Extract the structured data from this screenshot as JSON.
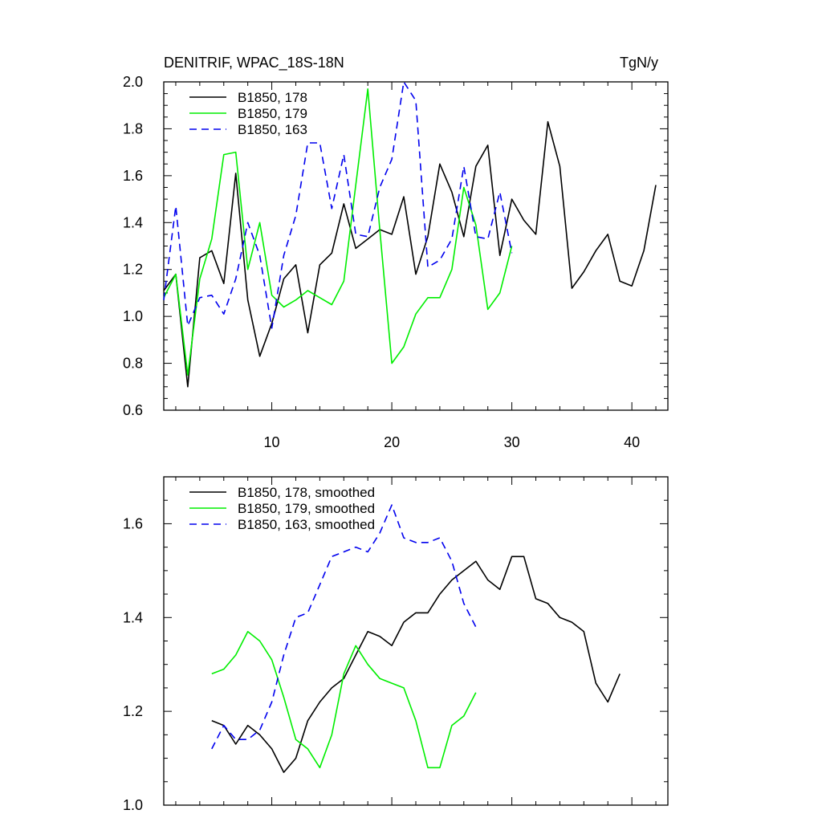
{
  "chart_data": [
    {
      "type": "line",
      "title": "DENITRIF, WPAC_18S-18N",
      "units": "TgN/y",
      "xlim": [
        1,
        43
      ],
      "ylim": [
        0.6,
        2.0
      ],
      "yticks": [
        0.6,
        0.8,
        1.0,
        1.2,
        1.4,
        1.6,
        1.8,
        2.0
      ],
      "xticks": [
        10,
        20,
        30,
        40
      ],
      "legend_position": "top-left",
      "series": [
        {
          "name": "B1850, 178",
          "color": "#000000",
          "dash": "solid",
          "x": [
            1,
            2,
            3,
            4,
            5,
            6,
            7,
            8,
            9,
            10,
            11,
            12,
            13,
            14,
            15,
            16,
            17,
            18,
            19,
            20,
            21,
            22,
            23,
            24,
            25,
            26,
            27,
            28,
            29,
            30,
            31,
            32,
            33,
            34,
            35,
            36,
            37,
            38,
            39,
            40,
            41,
            42
          ],
          "y": [
            1.11,
            1.18,
            0.7,
            1.25,
            1.28,
            1.14,
            1.61,
            1.07,
            0.83,
            0.97,
            1.16,
            1.22,
            0.93,
            1.22,
            1.27,
            1.48,
            1.29,
            1.33,
            1.37,
            1.35,
            1.51,
            1.18,
            1.34,
            1.65,
            1.53,
            1.34,
            1.64,
            1.73,
            1.26,
            1.5,
            1.41,
            1.35,
            1.83,
            1.64,
            1.12,
            1.19,
            1.28,
            1.35,
            1.15,
            1.13,
            1.28,
            1.56
          ]
        },
        {
          "name": "B1850, 179",
          "color": "#00ee00",
          "dash": "solid",
          "x": [
            1,
            2,
            3,
            4,
            5,
            6,
            7,
            8,
            9,
            10,
            11,
            12,
            13,
            14,
            15,
            16,
            17,
            18,
            19,
            20,
            21,
            22,
            23,
            24,
            25,
            26,
            27,
            28,
            29,
            30
          ],
          "y": [
            1.08,
            1.18,
            0.75,
            1.16,
            1.33,
            1.69,
            1.7,
            1.2,
            1.4,
            1.09,
            1.04,
            1.07,
            1.11,
            1.08,
            1.05,
            1.15,
            1.56,
            1.97,
            1.37,
            0.8,
            0.87,
            1.01,
            1.08,
            1.08,
            1.2,
            1.55,
            1.39,
            1.03,
            1.1,
            1.3
          ]
        },
        {
          "name": "B1850, 163",
          "color": "#0000ee",
          "dash": "dashed",
          "x": [
            1,
            2,
            3,
            4,
            5,
            6,
            7,
            8,
            9,
            10,
            11,
            12,
            13,
            14,
            15,
            16,
            17,
            18,
            19,
            20,
            21,
            22,
            23,
            24,
            25,
            26,
            27,
            28,
            29,
            30
          ],
          "y": [
            1.07,
            1.47,
            0.96,
            1.08,
            1.09,
            1.01,
            1.16,
            1.4,
            1.26,
            0.95,
            1.26,
            1.43,
            1.74,
            1.74,
            1.46,
            1.69,
            1.35,
            1.34,
            1.55,
            1.67,
            2.0,
            1.92,
            1.21,
            1.24,
            1.33,
            1.64,
            1.34,
            1.33,
            1.53,
            1.27
          ]
        }
      ]
    },
    {
      "type": "line",
      "xlim": [
        1,
        43
      ],
      "ylim": [
        1.0,
        1.7
      ],
      "yticks": [
        1.0,
        1.2,
        1.4,
        1.6
      ],
      "legend_position": "top-left",
      "series": [
        {
          "name": "B1850, 178, smoothed",
          "color": "#000000",
          "dash": "solid",
          "x": [
            5,
            6,
            7,
            8,
            9,
            10,
            11,
            12,
            13,
            14,
            15,
            16,
            17,
            18,
            19,
            20,
            21,
            22,
            23,
            24,
            25,
            26,
            27,
            28,
            29,
            30,
            31,
            32,
            33,
            34,
            35,
            36,
            37,
            38,
            39
          ],
          "y": [
            1.18,
            1.17,
            1.13,
            1.17,
            1.15,
            1.12,
            1.07,
            1.1,
            1.18,
            1.22,
            1.25,
            1.27,
            1.32,
            1.37,
            1.36,
            1.34,
            1.39,
            1.41,
            1.41,
            1.45,
            1.48,
            1.5,
            1.52,
            1.48,
            1.46,
            1.53,
            1.53,
            1.44,
            1.43,
            1.4,
            1.39,
            1.37,
            1.26,
            1.22,
            1.28
          ]
        },
        {
          "name": "B1850, 179, smoothed",
          "color": "#00ee00",
          "dash": "solid",
          "x": [
            5,
            6,
            7,
            8,
            9,
            10,
            11,
            12,
            13,
            14,
            15,
            16,
            17,
            18,
            19,
            20,
            21,
            22,
            23,
            24,
            25,
            26,
            27
          ],
          "y": [
            1.28,
            1.29,
            1.32,
            1.37,
            1.35,
            1.31,
            1.23,
            1.14,
            1.12,
            1.08,
            1.15,
            1.28,
            1.34,
            1.3,
            1.27,
            1.26,
            1.25,
            1.18,
            1.08,
            1.08,
            1.17,
            1.19,
            1.24
          ]
        },
        {
          "name": "B1850, 163, smoothed",
          "color": "#0000ee",
          "dash": "dashed",
          "x": [
            5,
            6,
            7,
            8,
            9,
            10,
            11,
            12,
            13,
            14,
            15,
            16,
            17,
            18,
            19,
            20,
            21,
            22,
            23,
            24,
            25,
            26,
            27
          ],
          "y": [
            1.12,
            1.17,
            1.14,
            1.14,
            1.16,
            1.22,
            1.32,
            1.4,
            1.41,
            1.47,
            1.53,
            1.54,
            1.55,
            1.54,
            1.58,
            1.64,
            1.57,
            1.56,
            1.56,
            1.57,
            1.52,
            1.43,
            1.38
          ]
        }
      ]
    }
  ]
}
